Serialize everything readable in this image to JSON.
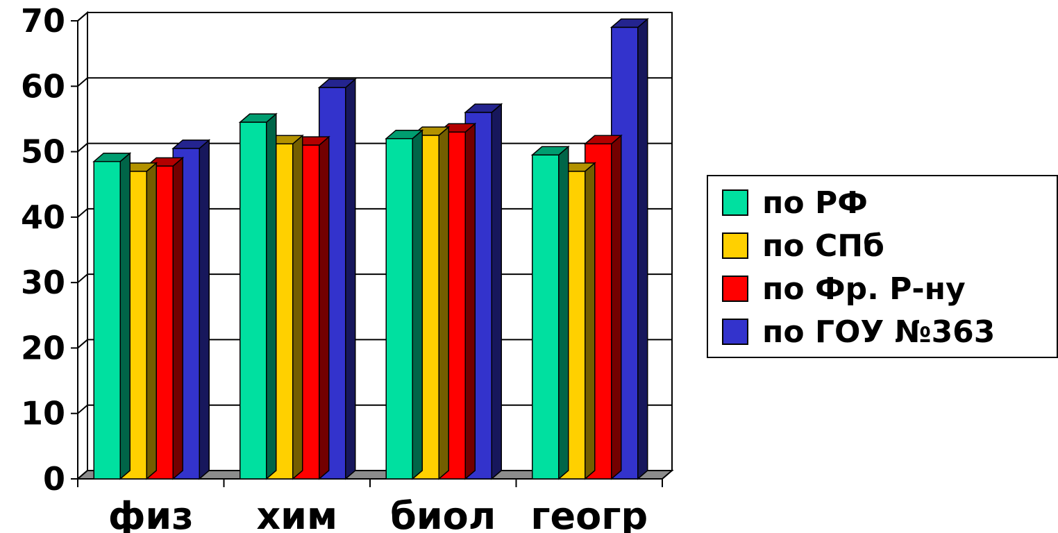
{
  "chart_data": {
    "type": "bar",
    "categories": [
      "физ",
      "хим",
      "биол",
      "геогр"
    ],
    "series": [
      {
        "name": "по РФ",
        "color": "#00E0A0",
        "values": [
          48.5,
          54.5,
          52,
          49.5
        ]
      },
      {
        "name": "по СПб",
        "color": "#FFD000",
        "values": [
          47,
          51.2,
          52.5,
          47
        ]
      },
      {
        "name": "по Фр. Р-ну",
        "color": "#FF0000",
        "values": [
          47.8,
          51,
          53,
          51.2
        ]
      },
      {
        "name": "по ГОУ №363",
        "color": "#3333CC",
        "values": [
          50.5,
          59.8,
          56,
          69
        ]
      }
    ],
    "ylim": [
      0,
      70
    ],
    "yticks": [
      0,
      10,
      20,
      30,
      40,
      50,
      60,
      70
    ],
    "grid": true,
    "legend_position": "right",
    "style": "3d-clustered-bar"
  },
  "legend": {
    "items": [
      {
        "label": "по РФ",
        "color": "#00E0A0"
      },
      {
        "label": "по СПб",
        "color": "#FFD000"
      },
      {
        "label": "по Фр. Р-ну",
        "color": "#FF0000"
      },
      {
        "label": "по ГОУ №363",
        "color": "#3333CC"
      }
    ]
  }
}
